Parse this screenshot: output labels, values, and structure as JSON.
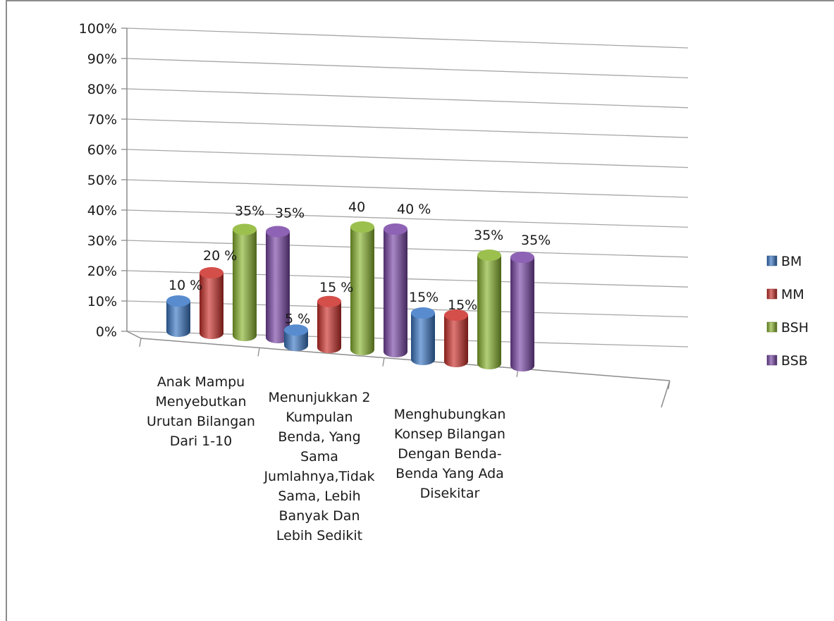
{
  "chart_data": {
    "type": "bar",
    "title": "",
    "xlabel": "",
    "ylabel": "",
    "ylim": [
      0,
      100
    ],
    "y_ticks": [
      "0%",
      "10%",
      "20%",
      "30%",
      "40%",
      "50%",
      "60%",
      "70%",
      "80%",
      "90%",
      "100%"
    ],
    "grid": true,
    "legend_position": "right",
    "categories": [
      "Anak Mampu Menyebutkan Urutan Bilangan Dari 1-10",
      "Menunjukkan 2 Kumpulan Benda, Yang Sama Jumlahnya,Tidak Sama, Lebih Banyak Dan Lebih Sedikit",
      "Menghubungkan Konsep Bilangan Dengan Benda-Benda Yang Ada Disekitar"
    ],
    "category_lines": [
      [
        "Anak Mampu",
        "Menyebutkan",
        "Urutan Bilangan",
        "Dari 1-10"
      ],
      [
        "Menunjukkan 2",
        "Kumpulan",
        "Benda, Yang",
        "Sama",
        "Jumlahnya,Tidak",
        "Sama, Lebih",
        "Banyak Dan",
        "Lebih Sedikit"
      ],
      [
        "Menghubungkan",
        "Konsep Bilangan",
        "Dengan Benda-",
        "Benda Yang Ada",
        "Disekitar"
      ]
    ],
    "series": [
      {
        "name": "BM",
        "values": [
          10,
          5,
          15
        ],
        "labels": [
          "10 %",
          "5 %",
          "15%"
        ],
        "color": "#3a78c6"
      },
      {
        "name": "MM",
        "values": [
          20,
          15,
          15
        ],
        "labels": [
          "20 %",
          "15 %",
          "15%"
        ],
        "color": "#cc2f2a"
      },
      {
        "name": "BSH",
        "values": [
          35,
          40,
          35
        ],
        "labels": [
          "35%",
          "40",
          "35%"
        ],
        "color": "#8ab52f"
      },
      {
        "name": "BSB",
        "values": [
          35,
          40,
          35
        ],
        "labels": [
          "35%",
          "40 %",
          "35%"
        ],
        "color": "#7a46a8"
      }
    ]
  }
}
